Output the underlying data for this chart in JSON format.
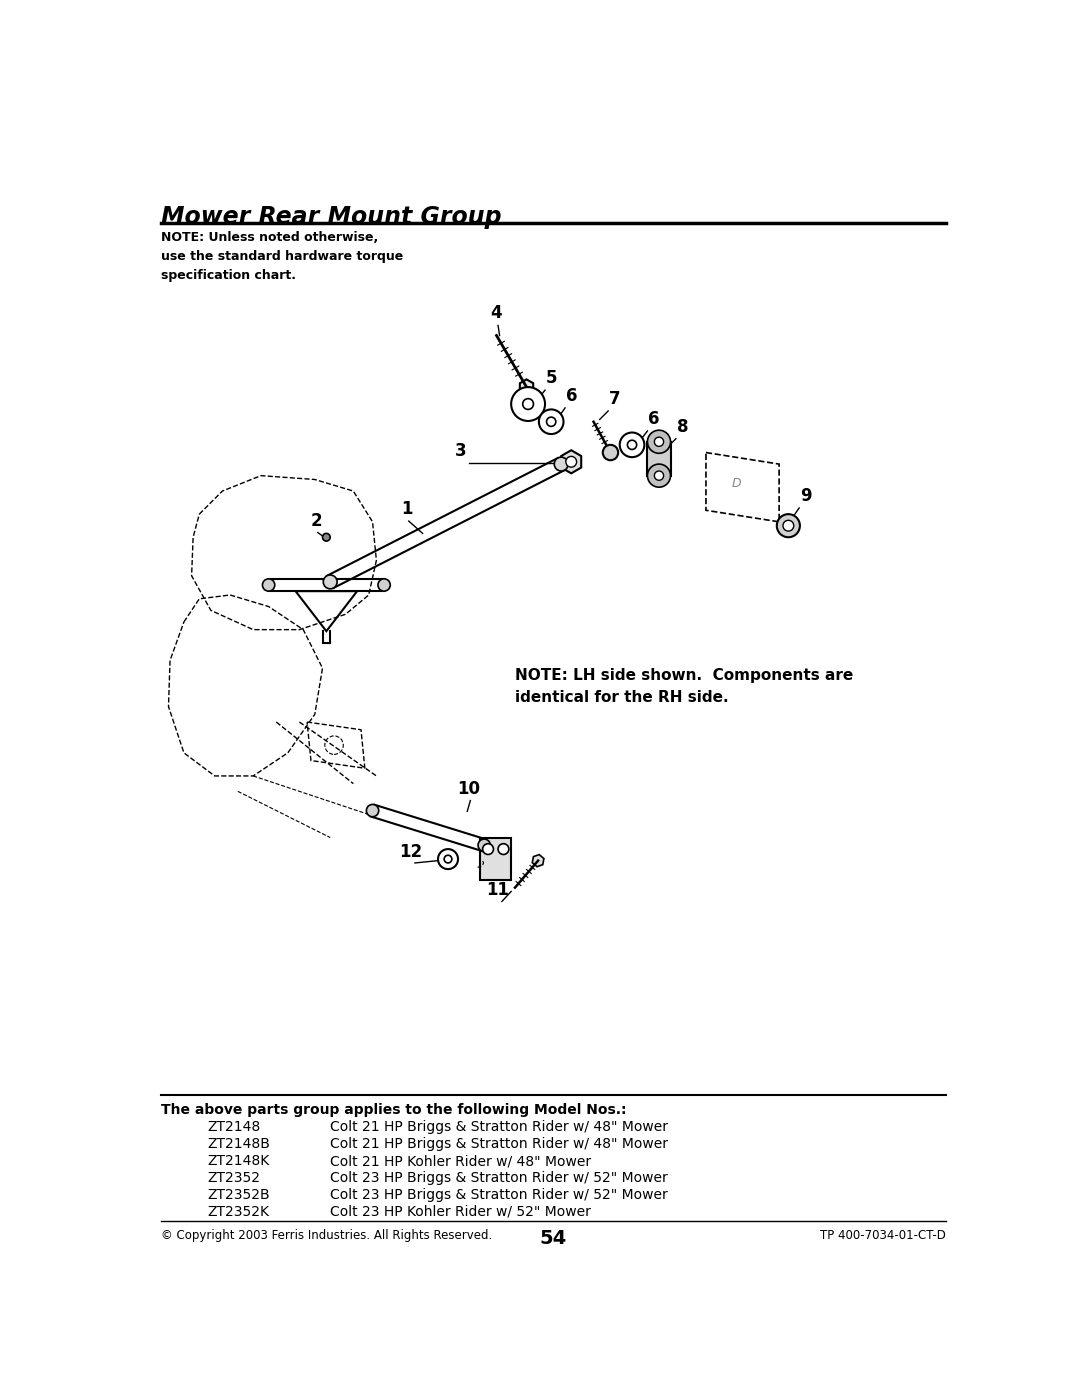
{
  "title": "Mower Rear Mount Group",
  "note_text": "NOTE: Unless noted otherwise,\nuse the standard hardware torque\nspecification chart.",
  "lh_note": "NOTE: LH side shown.  Components are\nidentical for the RH side.",
  "footer_left": "© Copyright 2003 Ferris Industries. All Rights Reserved.",
  "footer_center": "54",
  "footer_right": "TP 400-7034-01-CT-D",
  "models": [
    [
      "ZT2148",
      "Colt 21 HP Briggs & Stratton Rider w/ 48\" Mower"
    ],
    [
      "ZT2148B",
      "Colt 21 HP Briggs & Stratton Rider w/ 48\" Mower"
    ],
    [
      "ZT2148K",
      "Colt 21 HP Kohler Rider w/ 48\" Mower"
    ],
    [
      "ZT2352",
      "Colt 23 HP Briggs & Stratton Rider w/ 52\" Mower"
    ],
    [
      "ZT2352B",
      "Colt 23 HP Briggs & Stratton Rider w/ 52\" Mower"
    ],
    [
      "ZT2352K",
      "Colt 23 HP Kohler Rider w/ 52\" Mower"
    ]
  ],
  "parts_header": "The above parts group applies to the following Model Nos.:",
  "bg_color": "#ffffff",
  "text_color": "#000000"
}
